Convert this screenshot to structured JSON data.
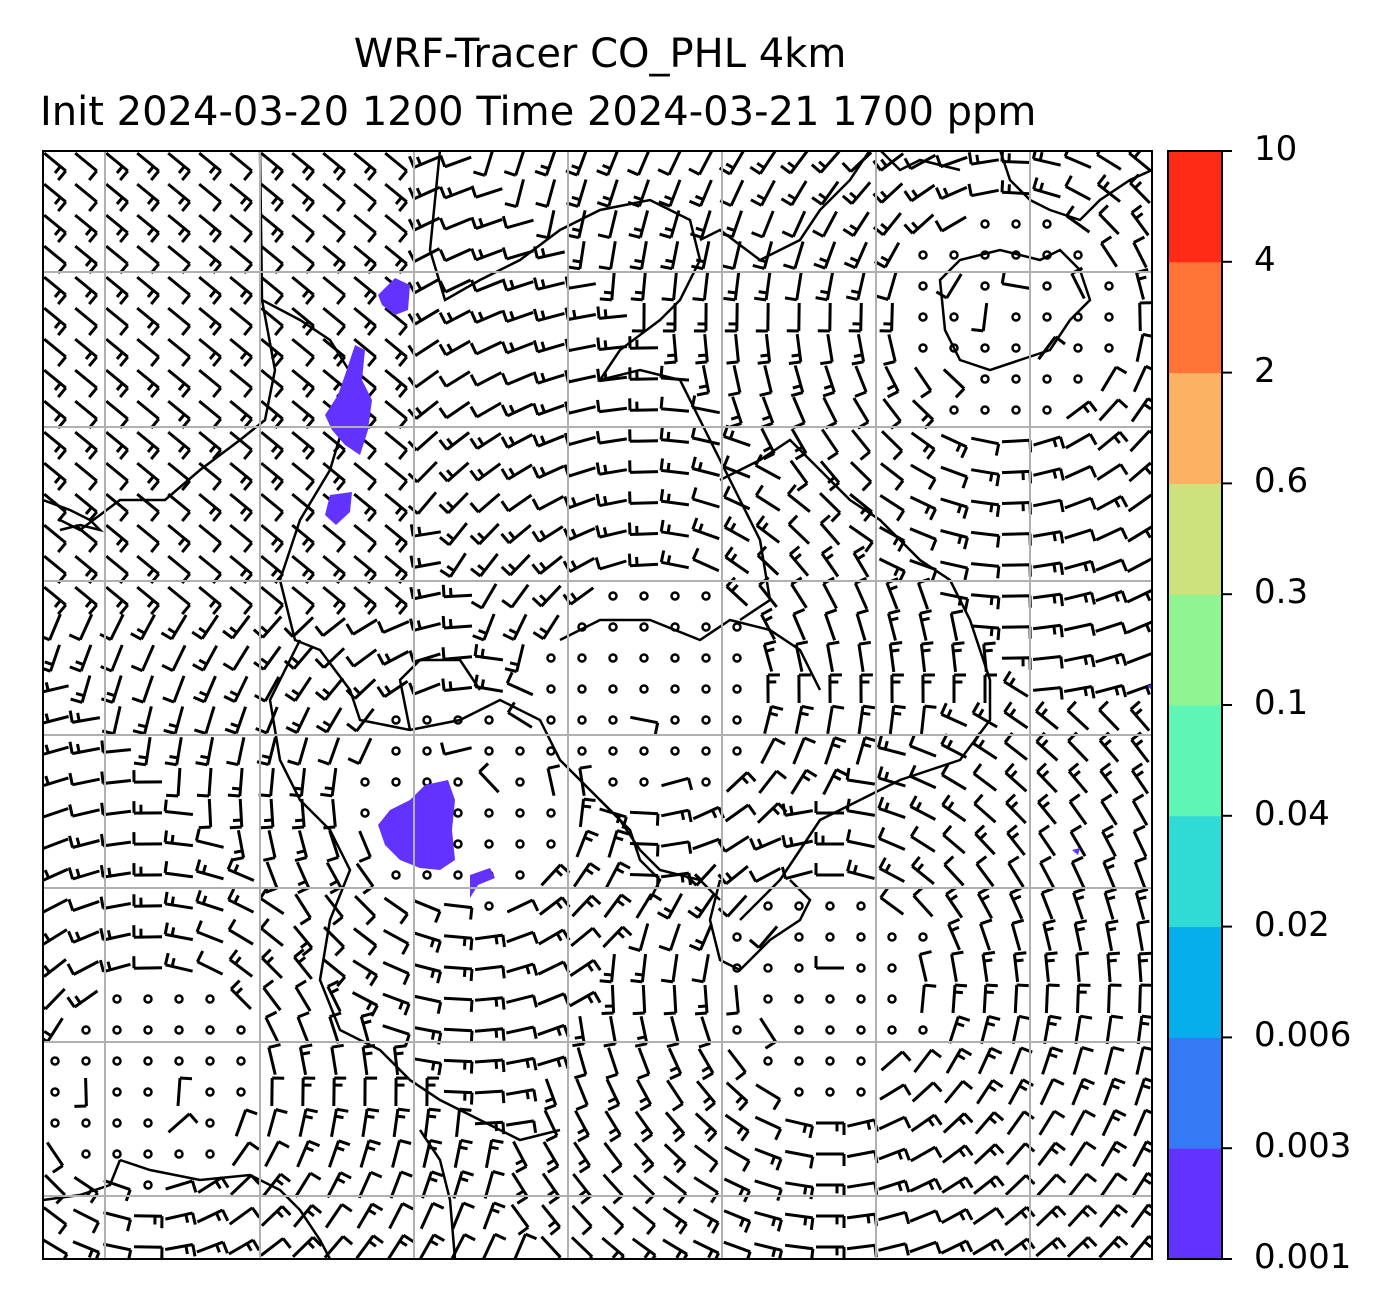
{
  "title": {
    "line1": "WRF-Tracer CO_PHL 4km",
    "line2": "Init 2024-03-20 1200 Time 2024-03-21 1700 ppm"
  },
  "colorbar": {
    "levels": [
      "0.001",
      "0.003",
      "0.006",
      "0.02",
      "0.04",
      "0.1",
      "0.3",
      "0.6",
      "2",
      "4",
      "10"
    ],
    "colors": [
      "#6233ff",
      "#3679f5",
      "#06aeea",
      "#2fdbd4",
      "#5ef6b4",
      "#8ff592",
      "#cde17d",
      "#fbb262",
      "#ff7336",
      "#ff2b17"
    ]
  },
  "map": {
    "grid": "on",
    "tracer_color": "#6233ff",
    "overlay": "wind barbs"
  }
}
